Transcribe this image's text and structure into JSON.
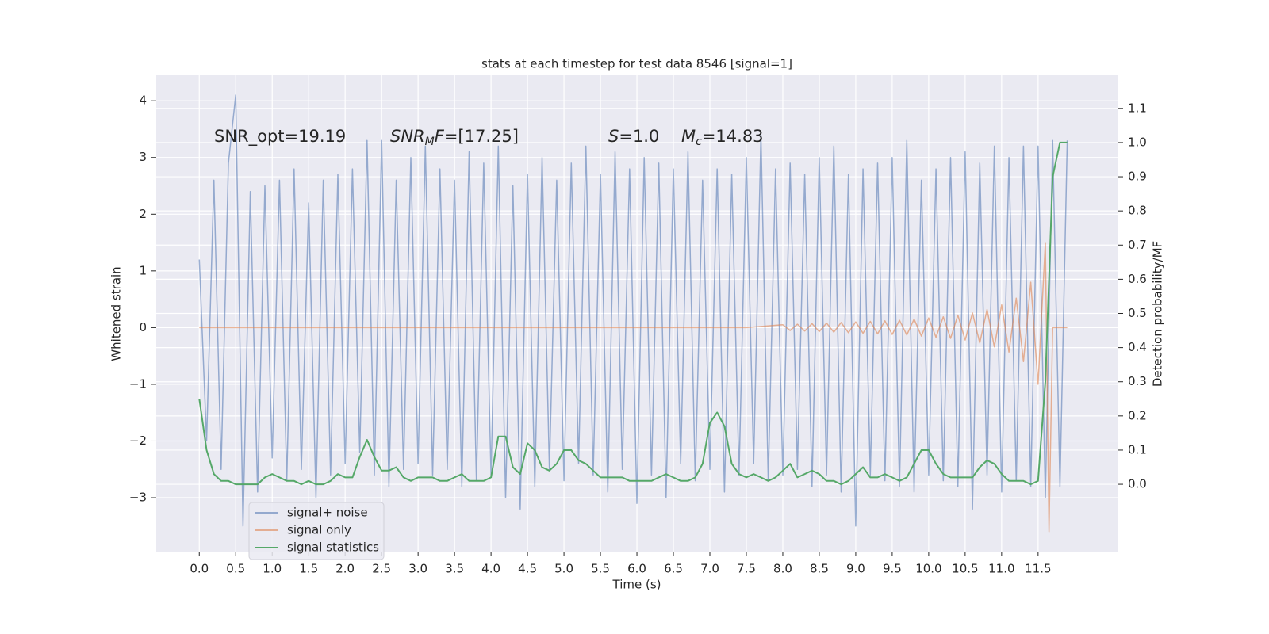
{
  "chart_data": {
    "type": "line",
    "title": "stats at each timestep for test data 8546 [signal=1]",
    "xlabel": "Time (s)",
    "ylabel": "Whitened strain",
    "y2label": "Detection probability/MF",
    "annotations": [
      [
        {
          "text": "SNR_opt=19.19"
        }
      ],
      [
        {
          "text": "SNR",
          "italic": true
        },
        {
          "text": "M",
          "italic": true,
          "sub": true
        },
        {
          "text": "F",
          "italic": true
        },
        {
          "text": "=[17.25]"
        }
      ],
      [
        {
          "text": "S",
          "italic": true
        },
        {
          "text": "=1.0"
        }
      ],
      [
        {
          "text": "M",
          "italic": true
        },
        {
          "text": "c",
          "italic": true,
          "sub": true
        },
        {
          "text": "=14.83"
        }
      ]
    ],
    "x": [
      0.0,
      0.1,
      0.2,
      0.3,
      0.4,
      0.5,
      0.6,
      0.7,
      0.8,
      0.9,
      1.0,
      1.1,
      1.2,
      1.3,
      1.4,
      1.5,
      1.6,
      1.7,
      1.8,
      1.9,
      2.0,
      2.1,
      2.2,
      2.3,
      2.4,
      2.5,
      2.6,
      2.7,
      2.8,
      2.9,
      3.0,
      3.1,
      3.2,
      3.3,
      3.4,
      3.5,
      3.6,
      3.7,
      3.8,
      3.9,
      4.0,
      4.1,
      4.2,
      4.3,
      4.4,
      4.5,
      4.6,
      4.7,
      4.8,
      4.9,
      5.0,
      5.1,
      5.2,
      5.3,
      5.4,
      5.5,
      5.6,
      5.7,
      5.8,
      5.9,
      6.0,
      6.1,
      6.2,
      6.3,
      6.4,
      6.5,
      6.6,
      6.7,
      6.8,
      6.9,
      7.0,
      7.1,
      7.2,
      7.3,
      7.4,
      7.5,
      7.6,
      7.7,
      7.8,
      7.9,
      8.0,
      8.1,
      8.2,
      8.3,
      8.4,
      8.5,
      8.6,
      8.7,
      8.8,
      8.9,
      9.0,
      9.1,
      9.2,
      9.3,
      9.4,
      9.5,
      9.6,
      9.7,
      9.8,
      9.9,
      10.0,
      10.1,
      10.2,
      10.3,
      10.4,
      10.5,
      10.6,
      10.7,
      10.8,
      10.9,
      11.0,
      11.1,
      11.2,
      11.3,
      11.4,
      11.5,
      11.6,
      11.7,
      11.8,
      11.9
    ],
    "series": [
      {
        "name": "signal+ noise",
        "color": "#4c72b0",
        "opacity": 0.55,
        "values": [
          1.2,
          -2.0,
          2.6,
          -2.5,
          2.9,
          4.1,
          -3.5,
          2.4,
          -2.9,
          2.5,
          -2.3,
          2.6,
          -2.7,
          2.8,
          -2.5,
          2.2,
          -3.0,
          2.6,
          -2.6,
          2.7,
          -2.4,
          2.8,
          -2.2,
          3.3,
          -2.6,
          3.3,
          -2.8,
          2.6,
          -2.5,
          3.0,
          -2.4,
          3.2,
          -2.6,
          2.8,
          -2.5,
          2.6,
          -2.8,
          3.1,
          -2.7,
          2.9,
          -2.6,
          3.2,
          -3.0,
          2.5,
          -3.2,
          2.7,
          -2.8,
          3.0,
          -2.5,
          2.6,
          -2.7,
          2.9,
          -2.4,
          3.2,
          -2.6,
          2.7,
          -2.9,
          3.1,
          -2.5,
          2.8,
          -3.1,
          3.0,
          -2.6,
          2.9,
          -3.0,
          2.8,
          -2.4,
          3.1,
          -2.7,
          2.6,
          -2.5,
          2.8,
          -2.9,
          2.7,
          -2.6,
          3.0,
          -2.4,
          3.4,
          -2.7,
          2.8,
          -2.6,
          2.9,
          -2.5,
          2.7,
          -2.8,
          3.0,
          -2.6,
          3.2,
          -2.9,
          2.7,
          -3.5,
          2.8,
          -2.6,
          2.9,
          -2.7,
          3.0,
          -2.8,
          3.3,
          -2.9,
          2.6,
          -2.6,
          2.8,
          -2.7,
          3.0,
          -2.8,
          3.1,
          -3.2,
          2.9,
          -2.6,
          3.2,
          -2.9,
          3.0,
          -2.7,
          3.2,
          -2.8,
          3.2,
          -3.0,
          3.3,
          -2.8,
          3.3
        ]
      },
      {
        "name": "signal only",
        "color": "#dd8452",
        "opacity": 0.6,
        "x": [
          0.0,
          7.5,
          8.0,
          8.1,
          8.2,
          8.3,
          8.4,
          8.5,
          8.6,
          8.7,
          8.8,
          8.9,
          9.0,
          9.1,
          9.2,
          9.3,
          9.4,
          9.5,
          9.6,
          9.7,
          9.8,
          9.9,
          10.0,
          10.1,
          10.2,
          10.3,
          10.4,
          10.5,
          10.6,
          10.7,
          10.8,
          10.9,
          11.0,
          11.1,
          11.2,
          11.3,
          11.4,
          11.5,
          11.6,
          11.65,
          11.7,
          11.9
        ],
        "values": [
          0,
          0,
          0.05,
          -0.05,
          0.06,
          -0.06,
          0.07,
          -0.07,
          0.08,
          -0.08,
          0.09,
          -0.09,
          0.1,
          -0.1,
          0.11,
          -0.11,
          0.12,
          -0.12,
          0.13,
          -0.13,
          0.15,
          -0.15,
          0.17,
          -0.17,
          0.19,
          -0.19,
          0.22,
          -0.22,
          0.26,
          -0.27,
          0.32,
          -0.34,
          0.4,
          -0.43,
          0.52,
          -0.6,
          0.8,
          -1.0,
          1.5,
          -3.6,
          0.0,
          0.0
        ]
      },
      {
        "name": "signal statistics",
        "color": "#55a868",
        "opacity": 1,
        "axis": "y2",
        "values": [
          0.25,
          0.1,
          0.03,
          0.01,
          0.01,
          0.0,
          0.0,
          0.0,
          0.0,
          0.02,
          0.03,
          0.02,
          0.01,
          0.01,
          0.0,
          0.01,
          0.0,
          0.0,
          0.01,
          0.03,
          0.02,
          0.02,
          0.08,
          0.13,
          0.08,
          0.04,
          0.04,
          0.05,
          0.02,
          0.01,
          0.02,
          0.02,
          0.02,
          0.01,
          0.01,
          0.02,
          0.03,
          0.01,
          0.01,
          0.01,
          0.02,
          0.14,
          0.14,
          0.05,
          0.03,
          0.12,
          0.1,
          0.05,
          0.04,
          0.06,
          0.1,
          0.1,
          0.07,
          0.06,
          0.04,
          0.02,
          0.02,
          0.02,
          0.02,
          0.01,
          0.01,
          0.01,
          0.01,
          0.02,
          0.03,
          0.02,
          0.01,
          0.01,
          0.02,
          0.06,
          0.18,
          0.21,
          0.17,
          0.06,
          0.03,
          0.02,
          0.03,
          0.02,
          0.01,
          0.02,
          0.04,
          0.06,
          0.02,
          0.03,
          0.04,
          0.03,
          0.01,
          0.01,
          0.0,
          0.01,
          0.03,
          0.05,
          0.02,
          0.02,
          0.03,
          0.02,
          0.01,
          0.02,
          0.06,
          0.1,
          0.1,
          0.06,
          0.03,
          0.02,
          0.02,
          0.02,
          0.02,
          0.05,
          0.07,
          0.06,
          0.03,
          0.01,
          0.01,
          0.01,
          0.0,
          0.01,
          0.3,
          0.9,
          1.0,
          1.0
        ]
      }
    ],
    "xlim": [
      -0.59,
      12.6
    ],
    "ylim": [
      -3.95,
      4.45
    ],
    "y2lim": [
      -0.197,
      1.197
    ],
    "xticks": [
      {
        "value": 0,
        "label": "0.0"
      },
      0.5,
      {
        "value": 1,
        "label": "1.0"
      },
      1.5,
      {
        "value": 2,
        "label": "2.0"
      },
      2.5,
      {
        "value": 3,
        "label": "3.0"
      },
      3.5,
      {
        "value": 4,
        "label": "4.0"
      },
      4.5,
      {
        "value": 5,
        "label": "5.0"
      },
      5.5,
      {
        "value": 6,
        "label": "6.0"
      },
      6.5,
      {
        "value": 7,
        "label": "7.0"
      },
      7.5,
      {
        "value": 8,
        "label": "8.0"
      },
      8.5,
      {
        "value": 9,
        "label": "9.0"
      },
      9.5,
      {
        "value": 10,
        "label": "10.0"
      },
      10.5,
      {
        "value": 11,
        "label": "11.0"
      },
      11.5
    ],
    "yticks": [
      {
        "value": -3,
        "label": "−3"
      },
      {
        "value": -2,
        "label": "−2"
      },
      {
        "value": -1,
        "label": "−1"
      },
      0,
      1,
      2,
      3,
      4
    ],
    "y2ticks": [
      {
        "value": 0,
        "label": "0.0"
      },
      0.1,
      0.2,
      0.3,
      0.4,
      0.5,
      0.6,
      0.7,
      0.8,
      0.9,
      {
        "value": 1,
        "label": "1.0"
      },
      1.1
    ],
    "grid": true,
    "legend": "lower left"
  }
}
